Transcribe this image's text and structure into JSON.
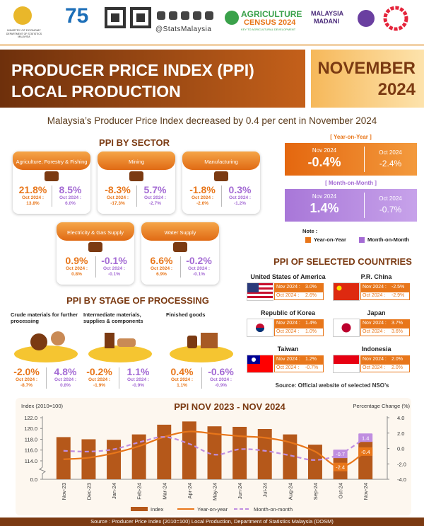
{
  "header": {
    "ministry": "MINISTRY OF ECONOMY",
    "department": "DEPARTMENT OF STATISTICS MALAYSIA",
    "anniversary": "75",
    "handle": "@StatsMalaysia",
    "census": [
      "AGRICULTURE",
      "CENSUS 2024"
    ],
    "census_tagline": "KEY TO AGRICULTURAL DEVELOPMENT",
    "madani": [
      "MALAYSIA",
      "MADANI"
    ]
  },
  "title": {
    "lines": [
      "PRODUCER PRICE INDEX (PPI)",
      "LOCAL PRODUCTION"
    ],
    "period": [
      "NOVEMBER",
      "2024"
    ]
  },
  "headline": "Malaysia’s Producer Price Index decreased by 0.4 per cent in November 2024",
  "sector": {
    "heading": "PPI BY SECTOR",
    "oct_label": "Oct 2024 :",
    "items": [
      {
        "name": "Agriculture, Forestry & Fishing",
        "yoy": "21.8%",
        "yoy_oct": "13.8%",
        "mom": "8.5%",
        "mom_oct": "6.0%"
      },
      {
        "name": "Mining",
        "yoy": "-8.3%",
        "yoy_oct": "-17.3%",
        "mom": "5.7%",
        "mom_oct": "-2.7%"
      },
      {
        "name": "Manufacturing",
        "yoy": "-1.8%",
        "yoy_oct": "-2.6%",
        "mom": "0.3%",
        "mom_oct": "-1.2%"
      },
      {
        "name": "Electricity & Gas Supply",
        "yoy": "0.9%",
        "yoy_oct": "0.8%",
        "mom": "-0.1%",
        "mom_oct": "-0.1%"
      },
      {
        "name": "Water Supply",
        "yoy": "6.6%",
        "yoy_oct": "6.9%",
        "mom": "-0.2%",
        "mom_oct": "-0.1%"
      }
    ]
  },
  "overall": {
    "yoy": {
      "label": "[ Year-on-Year ]",
      "current_label": "Nov 2024",
      "current": "-0.4%",
      "previous_label": "Oct 2024",
      "previous": "-2.4%"
    },
    "mom": {
      "label": "[ Month-on-Month ]",
      "current_label": "Nov 2024",
      "current": "1.4%",
      "previous_label": "Oct 2024",
      "previous": "-0.7%"
    },
    "note": {
      "title": "Note :",
      "yoy": "Year-on-Year",
      "mom": "Month-on-Month"
    }
  },
  "stage": {
    "heading": "PPI BY STAGE OF PROCESSING",
    "oct_label": "Oct 2024 :",
    "items": [
      {
        "name": "Crude materials for further processing",
        "yoy": "-2.0%",
        "yoy_oct": "-8.7%",
        "mom": "4.8%",
        "mom_oct": "0.8%"
      },
      {
        "name": "Intermediate materials, supplies & components",
        "yoy": "-0.2%",
        "yoy_oct": "-1.9%",
        "mom": "1.1%",
        "mom_oct": "-0.9%"
      },
      {
        "name": "Finished goods",
        "yoy": "0.4%",
        "yoy_oct": "1.1%",
        "mom": "-0.6%",
        "mom_oct": "-0.9%"
      }
    ]
  },
  "countries": {
    "heading": "PPI OF SELECTED COUNTRIES",
    "nov_label": "Nov 2024 :",
    "oct_label": "Oct 2024 :",
    "items": [
      {
        "name": "United States of America",
        "nov": "3.0%",
        "oct": "2.6%"
      },
      {
        "name": "P.R. China",
        "nov": "-2.5%",
        "oct": "-2.9%"
      },
      {
        "name": "Republic of Korea",
        "nov": "1.4%",
        "oct": "1.0%"
      },
      {
        "name": "Japan",
        "nov": "3.7%",
        "oct": "3.6%"
      },
      {
        "name": "Taiwan",
        "nov": "1.2%",
        "oct": "-0.7%"
      },
      {
        "name": "Indonesia",
        "nov": "2.0%",
        "oct": "2.0%"
      }
    ],
    "source": "Source: Official website of selected NSO’s"
  },
  "chart_data": {
    "type": "combo",
    "title": "PPI NOV 2023 - NOV 2024",
    "y_label": "Index (2010=100)",
    "y2_label": "Percentage Change (%)",
    "categories": [
      "Nov-23",
      "Dec-23",
      "Jan-24",
      "Feb-24",
      "Mar-24",
      "Apr-24",
      "May-24",
      "Jun-24",
      "Jul-24",
      "Aug-24",
      "Sep-24",
      "Oct-24",
      "Nov-24"
    ],
    "series": [
      {
        "name": "Index",
        "type": "bar",
        "color": "#b5581a",
        "values": [
          118.4,
          118.0,
          117.9,
          118.9,
          120.7,
          121.3,
          120.4,
          120.3,
          119.9,
          118.9,
          117.0,
          116.0,
          117.6
        ]
      },
      {
        "name": "Year-on-year",
        "type": "line",
        "color": "#e8761a",
        "axis": "y2",
        "values": [
          -1.4,
          -1.2,
          -0.6,
          0.3,
          1.5,
          2.2,
          1.9,
          1.6,
          1.4,
          0.8,
          -0.4,
          -2.4,
          -0.4
        ],
        "value_labels": [
          null,
          null,
          null,
          null,
          null,
          null,
          null,
          null,
          null,
          null,
          null,
          "-2.4",
          "-0.4"
        ]
      },
      {
        "name": "Month-on-month",
        "type": "line",
        "dashed": true,
        "color": "#c08ee0",
        "axis": "y2",
        "values": [
          -0.3,
          -0.4,
          -0.1,
          0.8,
          1.5,
          0.6,
          -0.8,
          -0.1,
          -0.3,
          -0.9,
          -1.5,
          -0.7,
          1.4
        ],
        "value_labels": [
          null,
          null,
          null,
          null,
          null,
          null,
          null,
          null,
          null,
          null,
          null,
          "-0.7",
          "1.4"
        ]
      }
    ],
    "ylim": [
      0,
      122
    ],
    "y_break": [
      0,
      113
    ],
    "yticks": [
      {
        "value": 0,
        "label": "0.0"
      },
      {
        "value": 114,
        "label": "114.0"
      },
      {
        "value": 116,
        "label": "116.0"
      },
      {
        "value": 118,
        "label": "118.0"
      },
      {
        "value": 120,
        "label": "120.0"
      },
      {
        "value": 122,
        "label": "122.0"
      }
    ],
    "y2lim": [
      -4,
      4
    ],
    "y2ticks": [
      {
        "value": 4,
        "label": "4.0"
      },
      {
        "value": 2,
        "label": "2.0"
      },
      {
        "value": 0,
        "label": "0.0"
      },
      {
        "value": -2,
        "label": "-2.0"
      },
      {
        "value": -4,
        "label": "-4.0"
      }
    ]
  },
  "footer": "Source : Producer Price Index (2010=100) Local Production, Department of Statistics Malaysia (DOSM)"
}
